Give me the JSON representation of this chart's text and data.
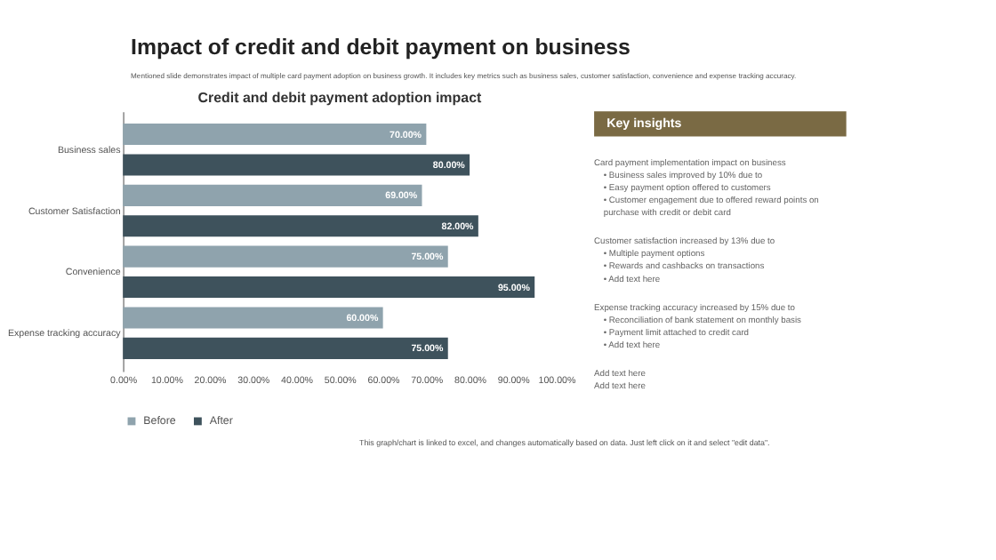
{
  "chart_data": {
    "type": "bar",
    "orientation": "horizontal",
    "title": "Credit and debit payment adoption impact",
    "categories": [
      "Business sales",
      "Customer Satisfaction",
      "Convenience",
      "Expense tracking accuracy"
    ],
    "series": [
      {
        "name": "Before",
        "color": "#8fa3ad",
        "values": [
          70,
          69,
          75,
          60
        ],
        "value_labels": [
          "70.00%",
          "69.00%",
          "75.00%",
          "60.00%"
        ]
      },
      {
        "name": "After",
        "color": "#3e525c",
        "values": [
          80,
          82,
          95,
          75
        ],
        "value_labels": [
          "80.00%",
          "82.00%",
          "95.00%",
          "75.00%"
        ]
      }
    ],
    "xlim": [
      0,
      100
    ],
    "xticks": [
      {
        "value": 0,
        "label": "0.00%"
      },
      {
        "value": 10,
        "label": "10.00%"
      },
      {
        "value": 20,
        "label": "20.00%"
      },
      {
        "value": 30,
        "label": "30.00%"
      },
      {
        "value": 40,
        "label": "40.00%"
      },
      {
        "value": 50,
        "label": "50.00%"
      },
      {
        "value": 60,
        "label": "60.00%"
      },
      {
        "value": 70,
        "label": "70.00%"
      },
      {
        "value": 80,
        "label": "80.00%"
      },
      {
        "value": 90,
        "label": "90.00%"
      },
      {
        "value": 100,
        "label": "100.00%"
      }
    ],
    "grid": false,
    "legend": "bottom",
    "annotations": [
      "Impact of credit and debit payment on business",
      "Mentioned slide demonstrates impact of multiple card payment adoption on business growth. It includes key metrics such as business sales, customer satisfaction, convenience and expense tracking accuracy.",
      "Key insights",
      "Card payment implementation impact on business",
      "• Business sales improved by 10% due to",
      "• Easy payment option offered to customers",
      "• Customer engagement due to offered reward points on",
      "  purchase with credit or debit card",
      "Customer satisfaction increased by 13% due to",
      "• Multiple payment options",
      "• Rewards and cashbacks on transactions",
      "• Add text here",
      "Expense tracking accuracy increased by 15% due to",
      "• Reconciliation of bank statement on monthly basis",
      "• Payment limit attached to credit card",
      "• Add text here",
      "Add text here",
      "Add text here",
      "This graph/chart is linked to excel, and changes automatically based on data. Just left click on it and select \"edit data\"."
    ]
  }
}
